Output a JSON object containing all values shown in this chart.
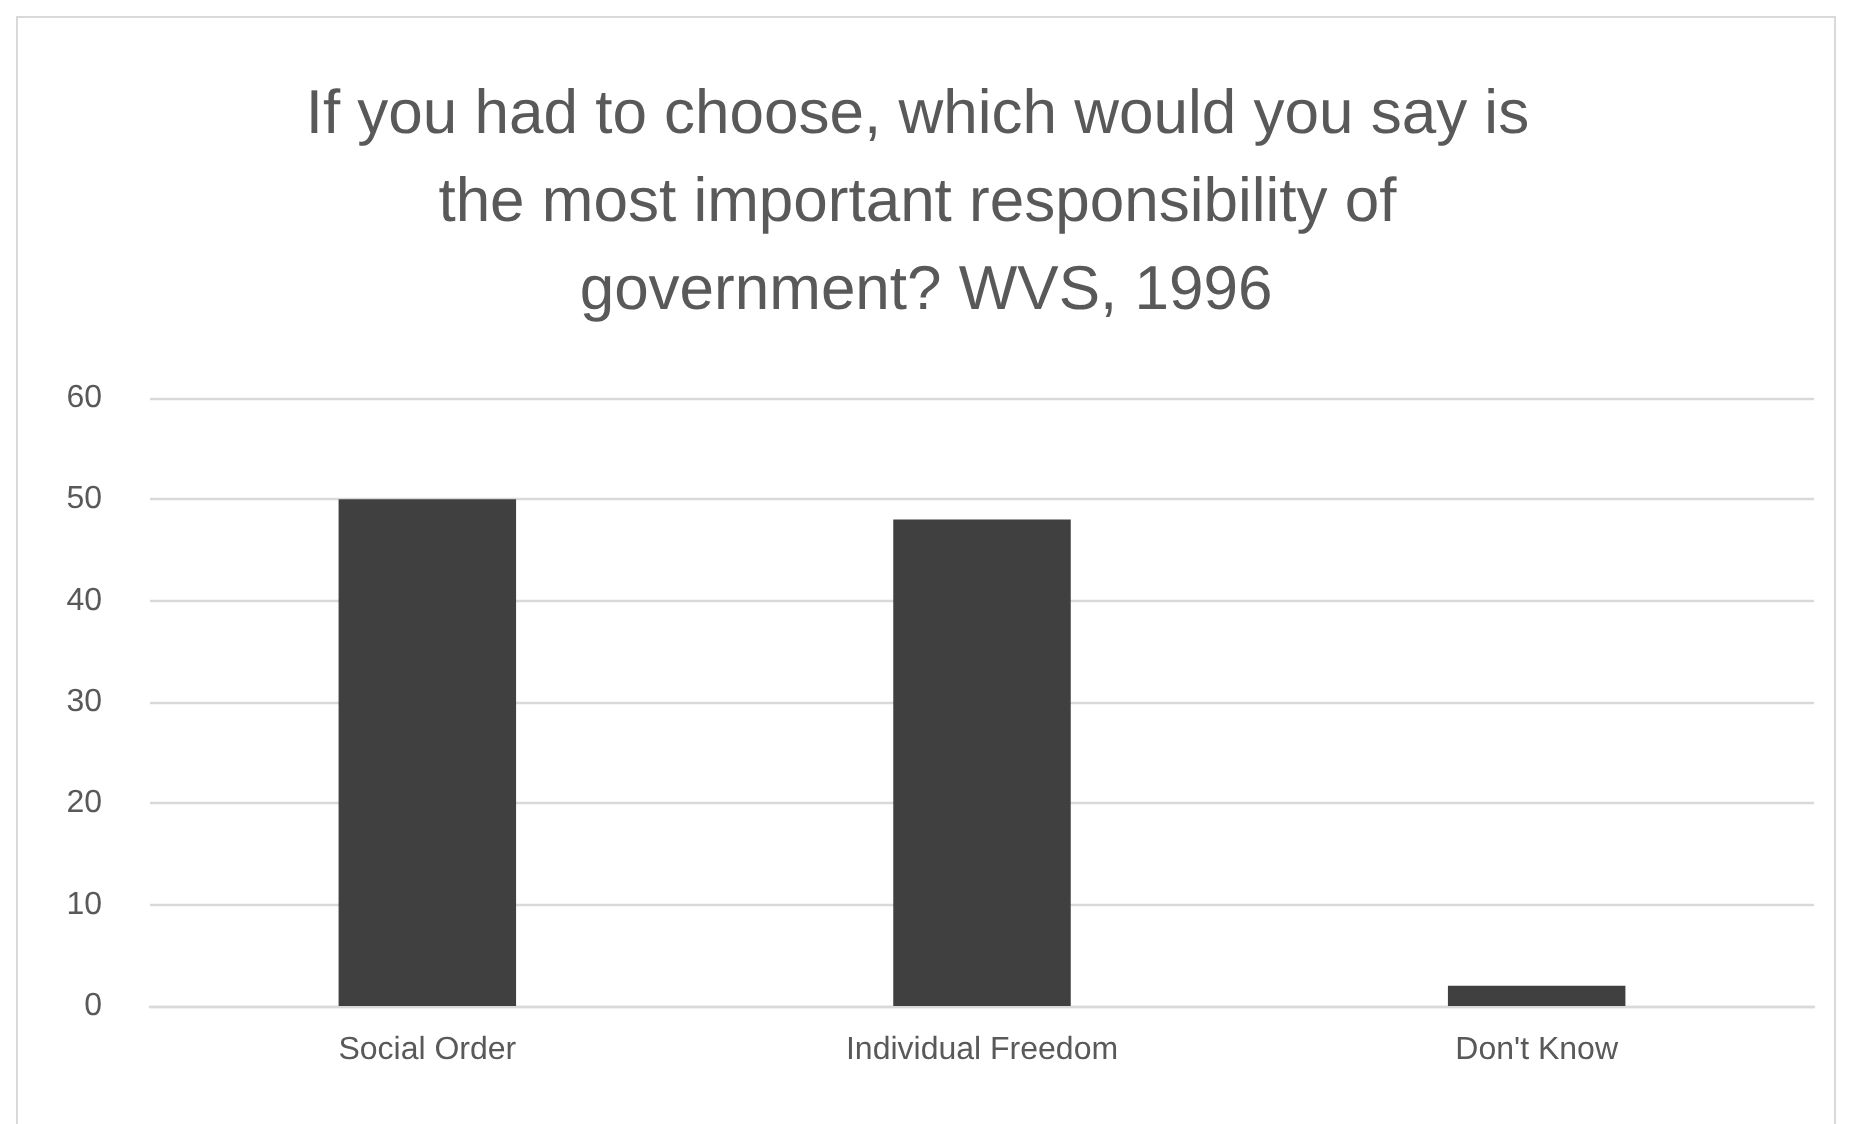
{
  "chart_data": {
    "type": "bar",
    "title": "If you had to choose, which would you say is the most important responsibility of government? WVS, 1996",
    "categories": [
      "Social Order",
      "Individual Freedom",
      "Don't Know"
    ],
    "values": [
      50,
      48,
      2
    ],
    "color": "#404040",
    "ylim": [
      0,
      60
    ],
    "yticks": [
      0,
      10,
      20,
      30,
      40,
      50,
      60
    ],
    "grid": "y"
  }
}
